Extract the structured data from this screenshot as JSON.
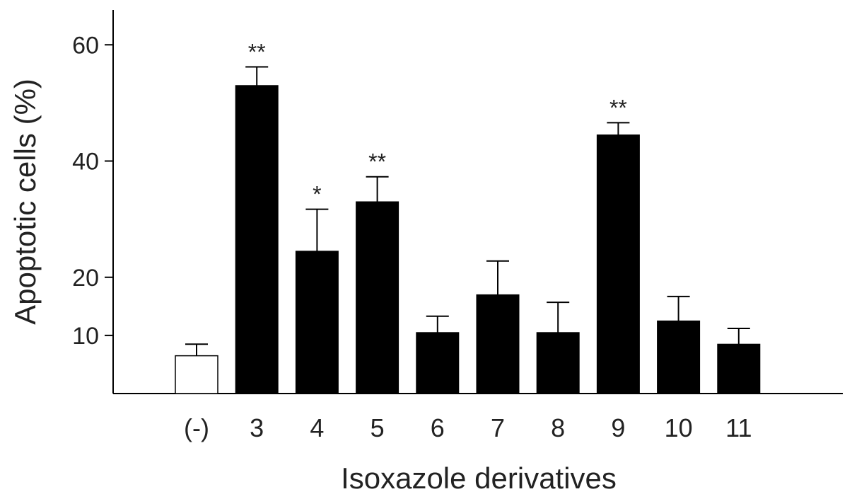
{
  "chart_data": {
    "type": "bar",
    "title": "",
    "xlabel": "Isoxazole derivatives",
    "ylabel": "Apoptotic cells (%)",
    "ylim": [
      0,
      66
    ],
    "yticks": [
      10,
      20,
      40,
      60
    ],
    "grid": false,
    "legend": "none",
    "categories": [
      "(-)",
      "3",
      "4",
      "5",
      "6",
      "7",
      "8",
      "9",
      "10",
      "11"
    ],
    "values": [
      6.5,
      53,
      24.5,
      33,
      10.5,
      17,
      10.5,
      44.5,
      12.5,
      8.5
    ],
    "errors": [
      2,
      3.2,
      7.2,
      4.3,
      2.8,
      5.8,
      5.2,
      2.1,
      4.2,
      2.7
    ],
    "significance": [
      "",
      "**",
      "*",
      "**",
      "",
      "",
      "",
      "**",
      "",
      ""
    ],
    "colors": {
      "control_fill": "#ffffff",
      "treatment_fill": "#000000",
      "axis": "#000000",
      "text": "#222222"
    }
  }
}
